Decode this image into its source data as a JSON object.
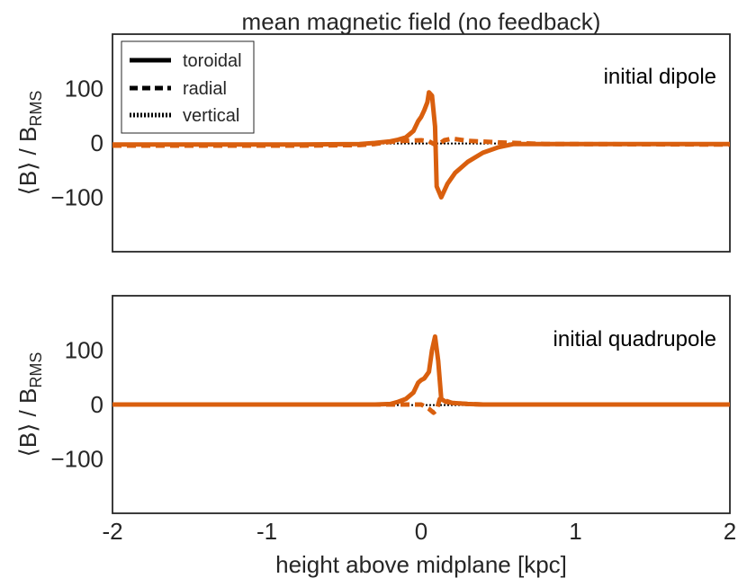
{
  "chart_data": {
    "type": "line",
    "title": "mean magnetic field (no feedback)",
    "xlabel": "height above midplane [kpc]",
    "ylabel_main": "⟨B⟩ / B",
    "ylabel_sub": "RMS",
    "xlim": [
      -2,
      2
    ],
    "ylim": [
      -200,
      200
    ],
    "xticks": [
      "-2",
      "-1",
      "0",
      "1",
      "2"
    ],
    "yticks": [
      "100",
      "0",
      "−100"
    ],
    "series_color": "#d95f0e",
    "legend": {
      "location": "top-left",
      "entries": [
        {
          "label": "toroidal",
          "style": "solid"
        },
        {
          "label": "radial",
          "style": "dashed"
        },
        {
          "label": "vertical",
          "style": "dotted"
        }
      ]
    },
    "panels": [
      {
        "annotation": "initial dipole",
        "series": [
          {
            "name": "toroidal",
            "x": [
              -2.0,
              -0.8,
              -0.4,
              -0.3,
              -0.2,
              -0.15,
              -0.1,
              -0.05,
              -0.02,
              0.0,
              0.02,
              0.04,
              0.05,
              0.07,
              0.09,
              0.1,
              0.13,
              0.17,
              0.22,
              0.3,
              0.4,
              0.5,
              0.6,
              0.8,
              2.0
            ],
            "y": [
              -3,
              -3,
              -2,
              0,
              3,
              6,
              10,
              22,
              40,
              48,
              60,
              75,
              93,
              87,
              30,
              -80,
              -100,
              -75,
              -55,
              -35,
              -18,
              -8,
              -2,
              -2,
              -2
            ]
          },
          {
            "name": "radial",
            "x": [
              -2.0,
              -0.8,
              -0.4,
              -0.3,
              -0.2,
              -0.1,
              0.0,
              0.05,
              0.1,
              0.15,
              0.2,
              0.3,
              0.5,
              0.8,
              2.0
            ],
            "y": [
              -5,
              -5,
              -4,
              -2,
              2,
              4,
              5,
              3,
              -5,
              5,
              8,
              4,
              1,
              -2,
              -3
            ]
          },
          {
            "name": "vertical",
            "x": [
              -2.0,
              2.0
            ],
            "y": [
              -1,
              -1
            ]
          }
        ]
      },
      {
        "annotation": "initial quadrupole",
        "series": [
          {
            "name": "toroidal",
            "x": [
              -2.0,
              -0.3,
              -0.2,
              -0.15,
              -0.1,
              -0.05,
              -0.02,
              0.0,
              0.02,
              0.05,
              0.07,
              0.09,
              0.11,
              0.13,
              0.16,
              0.2,
              0.25,
              0.3,
              0.4,
              0.5,
              2.0
            ],
            "y": [
              0,
              0,
              1,
              5,
              10,
              22,
              40,
              45,
              48,
              60,
              100,
              125,
              80,
              10,
              5,
              3,
              2,
              1,
              0,
              0,
              0
            ]
          },
          {
            "name": "radial",
            "x": [
              -2.0,
              -0.3,
              -0.1,
              0.0,
              0.05,
              0.08,
              0.1,
              0.12,
              0.15,
              0.2,
              0.3,
              0.4,
              0.5,
              2.0
            ],
            "y": [
              0,
              0,
              0,
              0,
              -8,
              -15,
              -10,
              10,
              8,
              3,
              1,
              0,
              0,
              0
            ]
          },
          {
            "name": "vertical",
            "x": [
              -2.0,
              2.0
            ],
            "y": [
              -1,
              -1
            ]
          }
        ]
      }
    ]
  }
}
